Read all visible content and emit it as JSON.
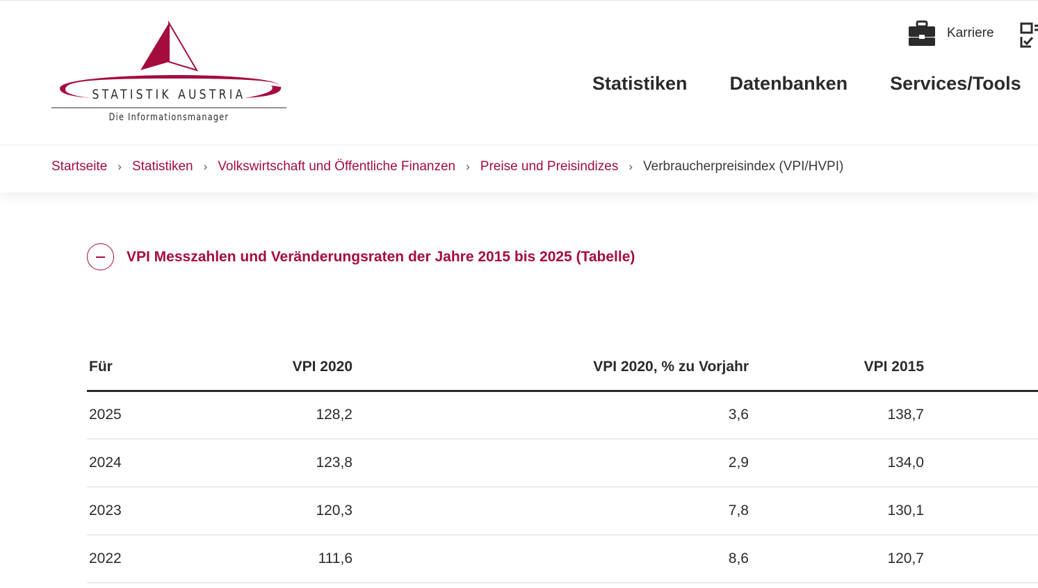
{
  "logo": {
    "name": "STATISTIK AUSTRIA",
    "tagline": "Die Informationsmanager",
    "brand_color": "#a50c3e"
  },
  "utility": {
    "karriere_label": "Karriere",
    "karriere_icon": "briefcase-icon",
    "extra_icon": "checklist-icon"
  },
  "nav": {
    "items": [
      {
        "label": "Statistiken"
      },
      {
        "label": "Datenbanken"
      },
      {
        "label": "Services/Tools"
      }
    ]
  },
  "breadcrumb": {
    "items": [
      {
        "label": "Startseite"
      },
      {
        "label": "Statistiken"
      },
      {
        "label": "Volkswirtschaft und Öffentliche Finanzen"
      },
      {
        "label": "Preise und Preisindizes"
      }
    ],
    "separator": "›",
    "current": "Verbraucherpreisindex (VPI/HVPI)"
  },
  "accordion": {
    "title": "VPI Messzahlen und Veränderungsraten der Jahre 2015 bis 2025 (Tabelle)",
    "state": "expanded"
  },
  "table": {
    "headers": [
      "Für",
      "VPI 2020",
      "VPI 2020, % zu Vorjahr",
      "VPI 2015"
    ],
    "rows": [
      [
        "2025",
        "128,2",
        "3,6",
        "138,7"
      ],
      [
        "2024",
        "123,8",
        "2,9",
        "134,0"
      ],
      [
        "2023",
        "120,3",
        "7,8",
        "130,1"
      ],
      [
        "2022",
        "111,6",
        "8,6",
        "120,7"
      ]
    ]
  }
}
